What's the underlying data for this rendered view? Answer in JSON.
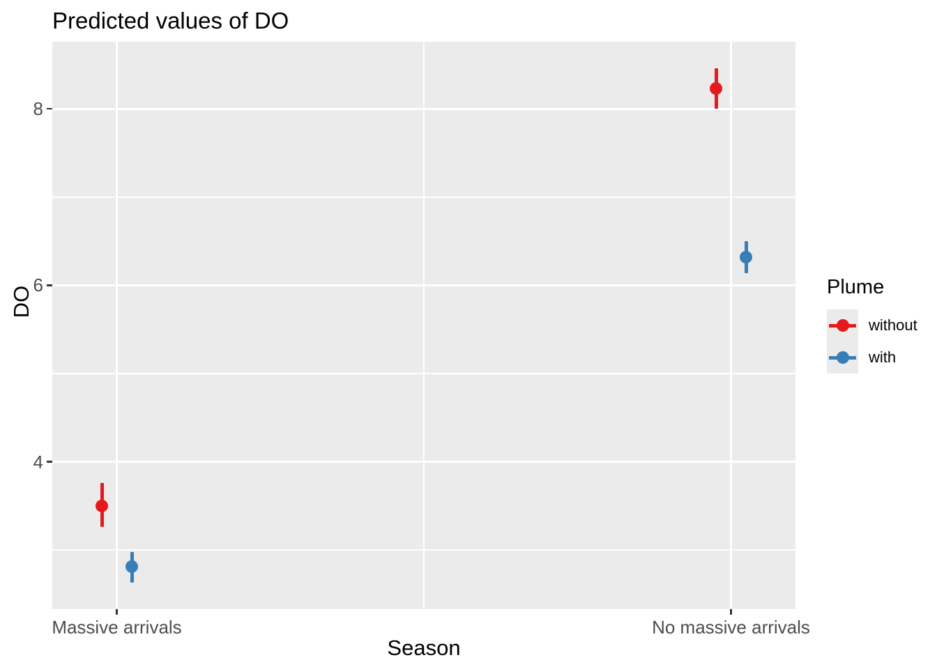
{
  "chart_data": {
    "type": "pointrange",
    "title": "Predicted values of DO",
    "xlabel": "Season",
    "ylabel": "DO",
    "categories": [
      "Massive arrivals",
      "No massive arrivals"
    ],
    "series": [
      {
        "name": "without",
        "color": "#E41A1C",
        "points": [
          {
            "category": "Massive arrivals",
            "y": 3.5,
            "ymin": 3.26,
            "ymax": 3.76
          },
          {
            "category": "No massive arrivals",
            "y": 8.23,
            "ymin": 8.0,
            "ymax": 8.46
          }
        ]
      },
      {
        "name": "with",
        "color": "#377EB8",
        "points": [
          {
            "category": "Massive arrivals",
            "y": 2.81,
            "ymin": 2.63,
            "ymax": 2.98
          },
          {
            "category": "No massive arrivals",
            "y": 6.32,
            "ymin": 6.14,
            "ymax": 6.5
          }
        ]
      }
    ],
    "y_axis": {
      "ticks": [
        8,
        6,
        4
      ],
      "minor_ticks": [
        7,
        5,
        3
      ],
      "domain": [
        2.33,
        8.76
      ],
      "grid": true
    },
    "legend": {
      "title": "Plume",
      "position": "right"
    },
    "colors": {
      "panel_bg": "#EBEBEB",
      "grid": "#FFFFFF",
      "axis_text": "#4D4D4D",
      "tick_mark": "#333333",
      "title_text": "#000000"
    }
  }
}
